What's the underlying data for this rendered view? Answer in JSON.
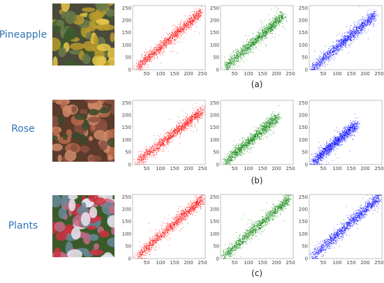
{
  "rows": [
    {
      "label": "Pineapple",
      "caption": "(a)",
      "thumb_colors": [
        "#4a4a3a",
        "#e8c84a",
        "#3c5a2c",
        "#b89a2c",
        "#6a7a4a"
      ]
    },
    {
      "label": "Rose",
      "caption": "(b)",
      "thumb_colors": [
        "#5a3a2a",
        "#b86a4a",
        "#d08a6a",
        "#3a4a2a",
        "#8a5040"
      ]
    },
    {
      "label": "Plants",
      "caption": "(c)",
      "thumb_colors": [
        "#3a5a2a",
        "#d03040",
        "#e8e8f0",
        "#c86a8a",
        "#6a8a9a"
      ]
    }
  ],
  "chart_data": [
    {
      "type": "scatter",
      "row": "Pineapple",
      "channel": "red",
      "color": "#ff0000",
      "xticks": [
        50,
        100,
        150,
        200,
        250
      ],
      "yticks": [
        0,
        50,
        100,
        150,
        200,
        250
      ],
      "xlim": [
        0,
        260
      ],
      "ylim": [
        0,
        260
      ],
      "trend": {
        "x_start": 15,
        "y_start": 10,
        "x_end": 245,
        "y_end": 235
      }
    },
    {
      "type": "scatter",
      "row": "Pineapple",
      "channel": "green",
      "color": "#008000",
      "xticks": [
        50,
        100,
        150,
        200,
        250
      ],
      "yticks": [
        0,
        50,
        100,
        150,
        200,
        250
      ],
      "xlim": [
        0,
        260
      ],
      "ylim": [
        0,
        260
      ],
      "trend": {
        "x_start": 15,
        "y_start": 10,
        "x_end": 225,
        "y_end": 220
      }
    },
    {
      "type": "scatter",
      "row": "Pineapple",
      "channel": "blue",
      "color": "#0000ff",
      "xticks": [
        50,
        100,
        150,
        200,
        250
      ],
      "yticks": [
        0,
        50,
        100,
        150,
        200,
        250
      ],
      "xlim": [
        0,
        260
      ],
      "ylim": [
        0,
        260
      ],
      "trend": {
        "x_start": 10,
        "y_start": 5,
        "x_end": 235,
        "y_end": 225
      }
    },
    {
      "type": "scatter",
      "row": "Rose",
      "channel": "red",
      "color": "#ff0000",
      "xticks": [
        50,
        100,
        150,
        200,
        250
      ],
      "yticks": [
        0,
        50,
        100,
        150,
        200,
        250
      ],
      "xlim": [
        0,
        260
      ],
      "ylim": [
        0,
        260
      ],
      "trend": {
        "x_start": 15,
        "y_start": 10,
        "x_end": 250,
        "y_end": 220
      }
    },
    {
      "type": "scatter",
      "row": "Rose",
      "channel": "green",
      "color": "#008000",
      "xticks": [
        50,
        100,
        150,
        200,
        250
      ],
      "yticks": [
        0,
        50,
        100,
        150,
        200,
        250
      ],
      "xlim": [
        0,
        260
      ],
      "ylim": [
        0,
        260
      ],
      "trend": {
        "x_start": 15,
        "y_start": 10,
        "x_end": 205,
        "y_end": 195
      }
    },
    {
      "type": "scatter",
      "row": "Rose",
      "channel": "blue",
      "color": "#0000ff",
      "xticks": [
        50,
        100,
        150,
        200,
        250
      ],
      "yticks": [
        0,
        50,
        100,
        150,
        200,
        250
      ],
      "xlim": [
        0,
        260
      ],
      "ylim": [
        0,
        260
      ],
      "trend": {
        "x_start": 10,
        "y_start": 10,
        "x_end": 170,
        "y_end": 165
      }
    },
    {
      "type": "scatter",
      "row": "Plants",
      "channel": "red",
      "color": "#ff0000",
      "xticks": [
        50,
        100,
        150,
        200,
        250
      ],
      "yticks": [
        0,
        50,
        100,
        150,
        200,
        250
      ],
      "xlim": [
        0,
        260
      ],
      "ylim": [
        0,
        260
      ],
      "trend": {
        "x_start": 15,
        "y_start": 10,
        "x_end": 250,
        "y_end": 245
      }
    },
    {
      "type": "scatter",
      "row": "Plants",
      "channel": "green",
      "color": "#008000",
      "xticks": [
        50,
        100,
        150,
        200,
        250
      ],
      "yticks": [
        0,
        50,
        100,
        150,
        200,
        250
      ],
      "xlim": [
        0,
        260
      ],
      "ylim": [
        0,
        260
      ],
      "trend": {
        "x_start": 10,
        "y_start": 10,
        "x_end": 245,
        "y_end": 245
      }
    },
    {
      "type": "scatter",
      "row": "Plants",
      "channel": "blue",
      "color": "#0000ff",
      "xticks": [
        50,
        100,
        150,
        200,
        250
      ],
      "yticks": [
        0,
        50,
        100,
        150,
        200,
        250
      ],
      "xlim": [
        0,
        260
      ],
      "ylim": [
        0,
        260
      ],
      "trend": {
        "x_start": 10,
        "y_start": 10,
        "x_end": 250,
        "y_end": 250
      }
    }
  ]
}
